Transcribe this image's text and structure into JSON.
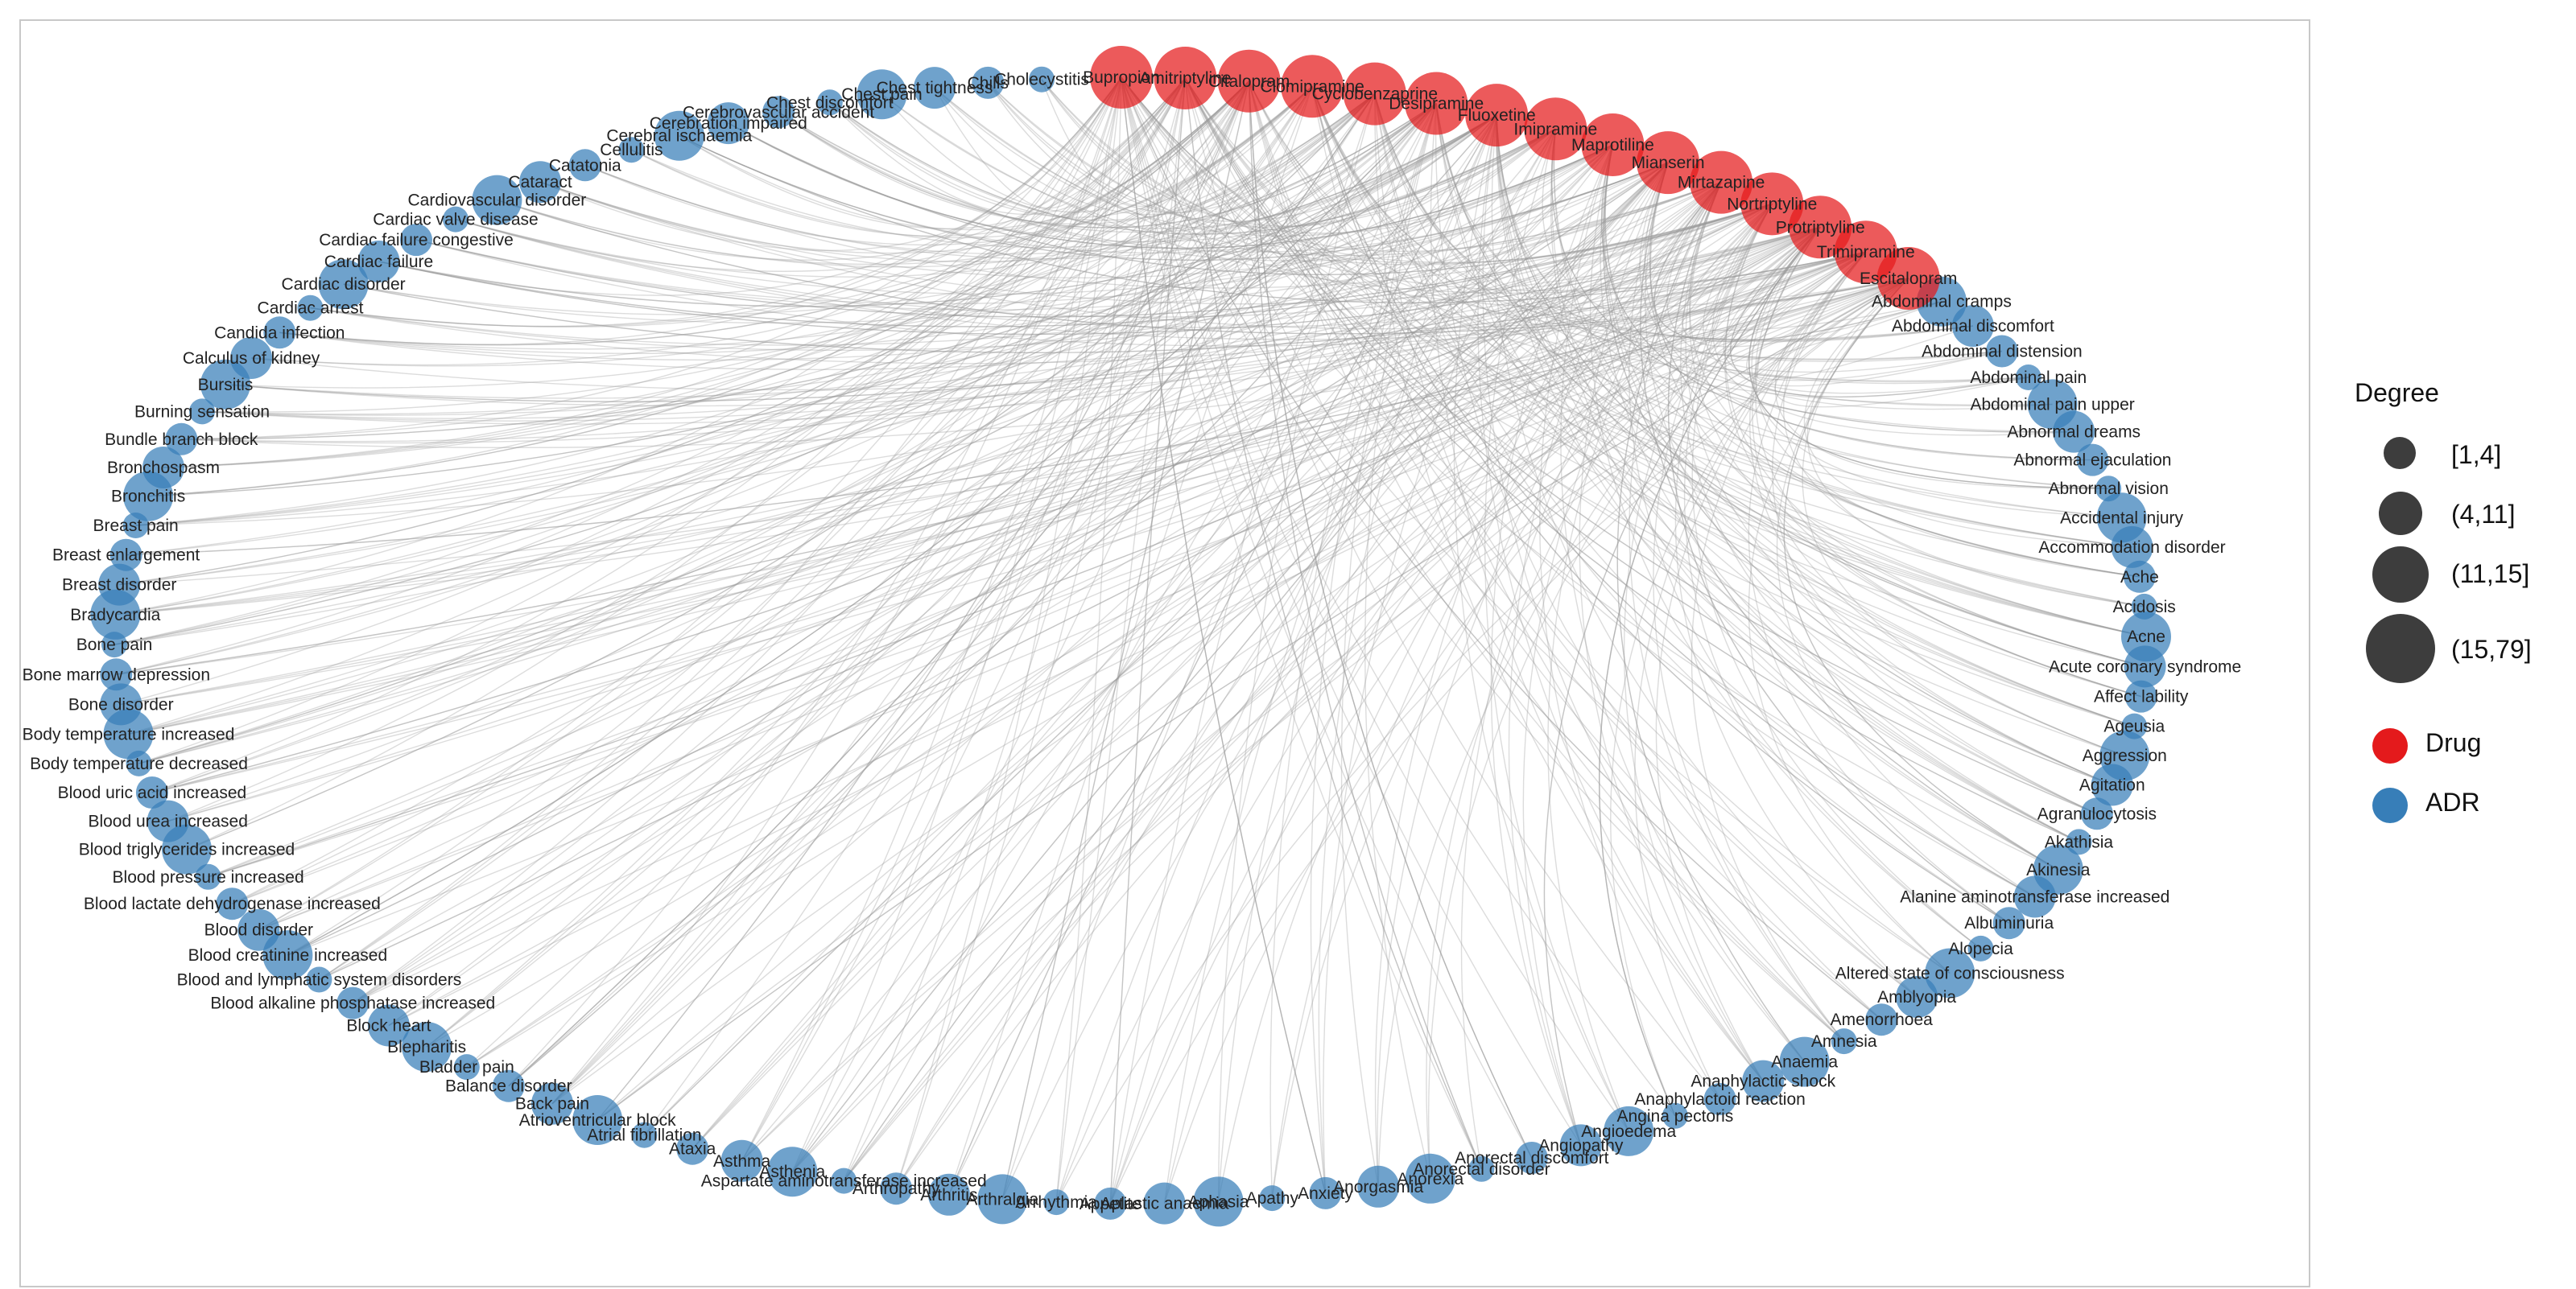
{
  "legend": {
    "size_title": "Degree",
    "size_bins": [
      "[1,4]",
      "(4,11]",
      "(11,15]",
      "(15,79]"
    ],
    "color_items": [
      {
        "label": "Drug",
        "color": "#e41a1c"
      },
      {
        "label": "ADR",
        "color": "#377eb8"
      }
    ]
  },
  "colors": {
    "drug": "#e41a1c",
    "adr": "#377eb8",
    "edge": "#9a9a9a"
  },
  "drugs": [
    "Bupropion",
    "Amitriptyline",
    "Citalopram",
    "Clomipramine",
    "Cyclobenzaprine",
    "Desipramine",
    "Fluoxetine",
    "Imipramine",
    "Maprotiline",
    "Mianserin",
    "Mirtazapine",
    "Nortriptyline",
    "Protriptyline",
    "Trimipramine",
    "Escitalopram"
  ],
  "adrs_clockwise": [
    "Abdominal cramps",
    "Abdominal discomfort",
    "Abdominal distension",
    "Abdominal pain",
    "Abdominal pain upper",
    "Abnormal dreams",
    "Abnormal ejaculation",
    "Abnormal vision",
    "Accidental injury",
    "Accommodation disorder",
    "Ache",
    "Acidosis",
    "Acne",
    "Acute coronary syndrome",
    "Affect lability",
    "Ageusia",
    "Aggression",
    "Agitation",
    "Agranulocytosis",
    "Akathisia",
    "Akinesia",
    "Alanine aminotransferase increased",
    "Albuminuria",
    "Alopecia",
    "Altered state of consciousness",
    "Amblyopia",
    "Amenorrhoea",
    "Amnesia",
    "Anaemia",
    "Anaphylactic shock",
    "Anaphylactoid reaction",
    "Angina pectoris",
    "Angioedema",
    "Angiopathy",
    "Anorectal discomfort",
    "Anorectal disorder",
    "Anorexia",
    "Anorgasmia",
    "Anxiety",
    "Apathy",
    "Aphasia",
    "Aplastic anaemia",
    "Appetite",
    "Arrhythmia",
    "Arthralgia",
    "Arthritis",
    "Arthropathy",
    "Aspartate aminotransferase increased",
    "Asthenia",
    "Asthma",
    "Ataxia",
    "Atrial fibrillation",
    "Atrioventricular block",
    "Back pain",
    "Balance disorder",
    "Bladder pain",
    "Blepharitis",
    "Block heart",
    "Blood alkaline phosphatase increased",
    "Blood and lymphatic system disorders",
    "Blood creatinine increased",
    "Blood disorder",
    "Blood lactate dehydrogenase increased",
    "Blood pressure increased",
    "Blood triglycerides increased",
    "Blood urea increased",
    "Blood uric acid increased",
    "Body temperature decreased",
    "Body temperature increased",
    "Bone disorder",
    "Bone marrow depression",
    "Bone pain",
    "Bradycardia",
    "Breast disorder",
    "Breast enlargement",
    "Breast pain",
    "Bronchitis",
    "Bronchospasm",
    "Bundle branch block",
    "Burning sensation",
    "Bursitis",
    "Calculus of kidney",
    "Candida infection",
    "Cardiac arrest",
    "Cardiac disorder",
    "Cardiac failure",
    "Cardiac failure congestive",
    "Cardiac valve disease",
    "Cardiovascular disorder",
    "Cataract",
    "Catatonia",
    "Cellulitis",
    "Cerebral ischaemia",
    "Cerebration impaired",
    "Cerebrovascular accident",
    "Chest discomfort",
    "Chest pain",
    "Chest tightness",
    "Chills",
    "Cholecystitis"
  ]
}
